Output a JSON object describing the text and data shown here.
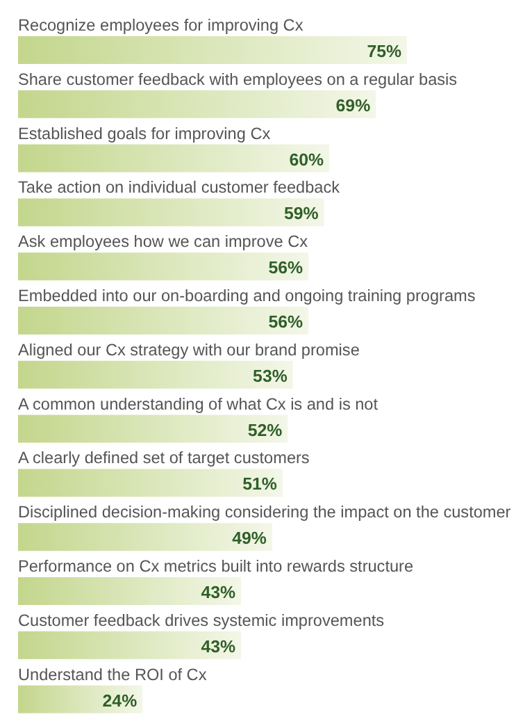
{
  "chart_data": {
    "type": "bar",
    "orientation": "horizontal",
    "color": "#c3d68c",
    "value_labels": [
      "75%",
      "69%",
      "60%",
      "59%",
      "56%",
      "56%",
      "53%",
      "52%",
      "51%",
      "49%",
      "43%",
      "43%",
      "24%"
    ],
    "categories": [
      "Recognize employees for improving Cx",
      "Share customer feedback with employees on a regular basis",
      "Established goals for improving Cx",
      "Take action on individual customer feedback",
      "Ask employees how we can improve Cx",
      "Embedded into our on-boarding and ongoing training programs",
      "Aligned our Cx strategy with our brand promise",
      "A common understanding of what Cx is and is not",
      "A clearly defined set of target customers",
      "Disciplined decision-making considering the impact on the customer",
      "Performance on Cx metrics built into rewards structure",
      "Customer feedback drives systemic improvements",
      "Understand the ROI of Cx"
    ],
    "values": [
      75,
      69,
      60,
      59,
      56,
      56,
      53,
      52,
      51,
      49,
      43,
      43,
      24
    ]
  }
}
